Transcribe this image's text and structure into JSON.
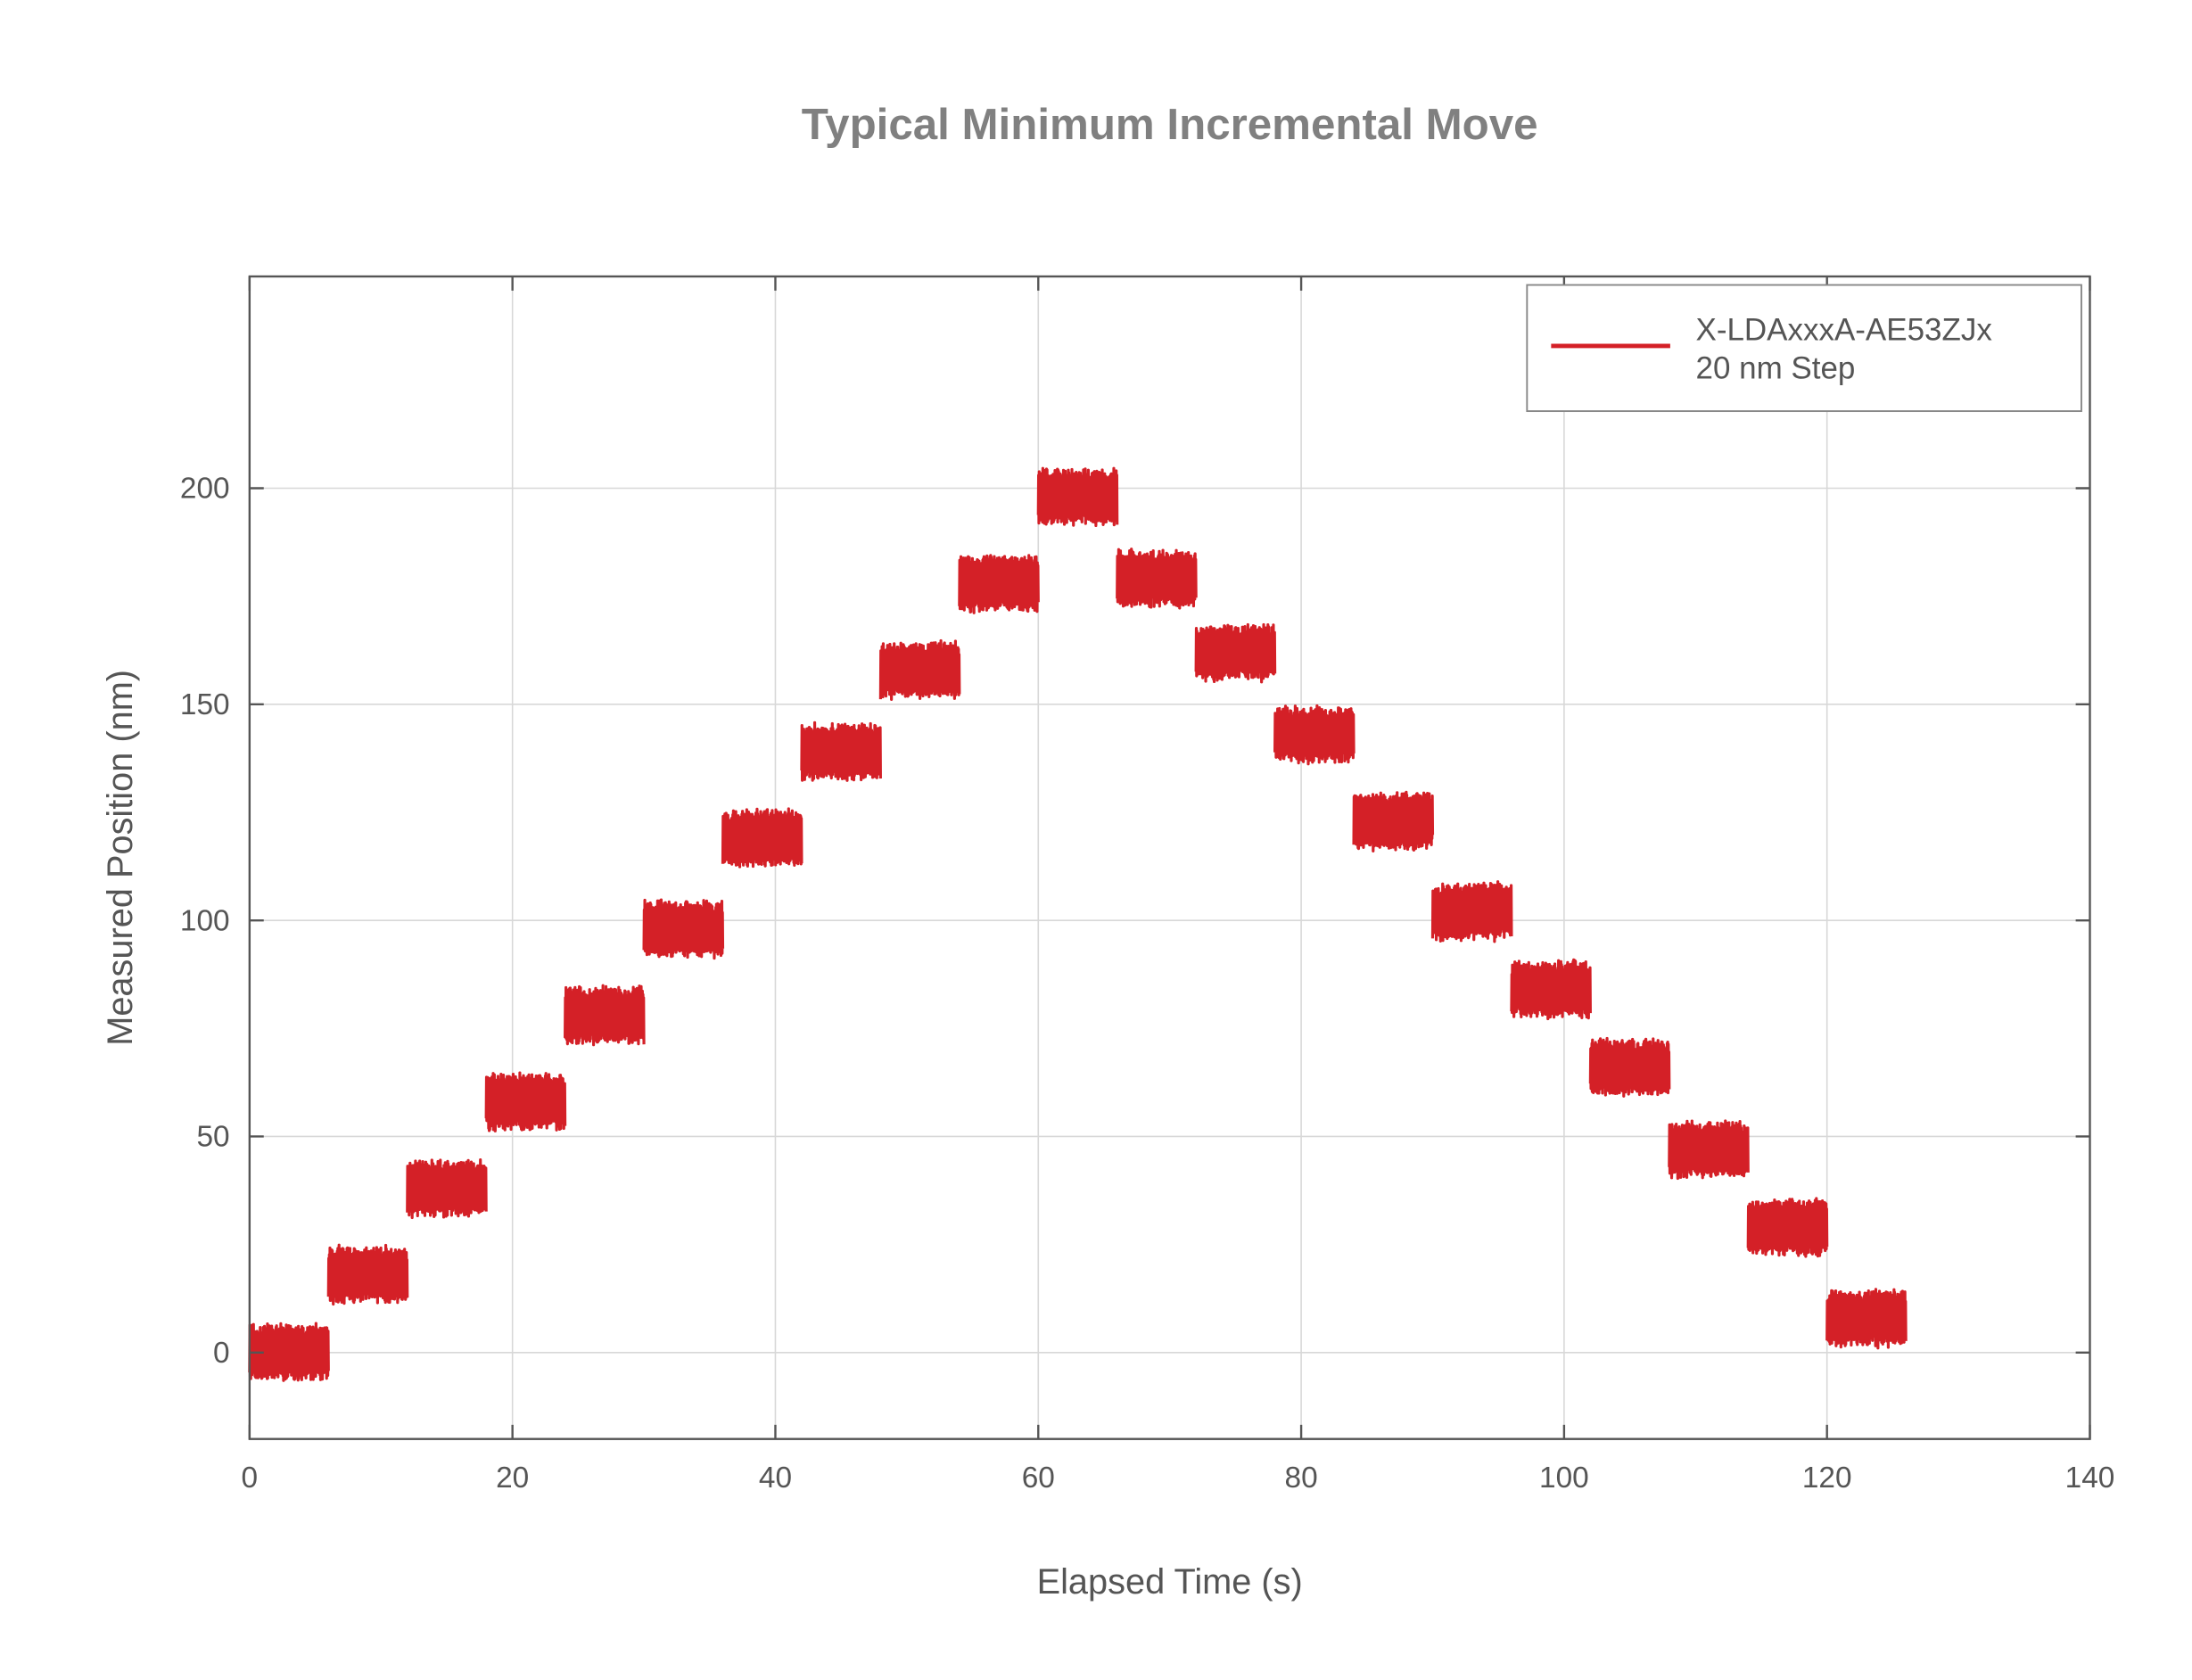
{
  "chart_data": {
    "type": "line",
    "title": "Typical Minimum Incremental Move",
    "xlabel": "Elapsed Time (s)",
    "ylabel": "Measured Position (nm)",
    "xlim": [
      0,
      140
    ],
    "ylim": [
      -20,
      249
    ],
    "xticks": [
      0,
      20,
      40,
      60,
      80,
      100,
      120,
      140
    ],
    "yticks": [
      0,
      50,
      100,
      150,
      200
    ],
    "grid": true,
    "legend_placement": "top-right",
    "series": [
      {
        "name": "X-LDAxxxA-AE53ZJx",
        "name_line2": "20 nm Step",
        "color": "#d42027",
        "noise_amplitude_nm": 7,
        "steps": [
          {
            "t_start": 0,
            "t_end": 6,
            "level": 0
          },
          {
            "t_start": 6,
            "t_end": 12,
            "level": 18
          },
          {
            "t_start": 12,
            "t_end": 18,
            "level": 38
          },
          {
            "t_start": 18,
            "t_end": 24,
            "level": 58
          },
          {
            "t_start": 24,
            "t_end": 30,
            "level": 78
          },
          {
            "t_start": 30,
            "t_end": 36,
            "level": 98
          },
          {
            "t_start": 36,
            "t_end": 42,
            "level": 119
          },
          {
            "t_start": 42,
            "t_end": 48,
            "level": 139
          },
          {
            "t_start": 48,
            "t_end": 54,
            "level": 158
          },
          {
            "t_start": 54,
            "t_end": 60,
            "level": 178
          },
          {
            "t_start": 60,
            "t_end": 66,
            "level": 198
          },
          {
            "t_start": 66,
            "t_end": 72,
            "level": 179
          },
          {
            "t_start": 72,
            "t_end": 78,
            "level": 162
          },
          {
            "t_start": 78,
            "t_end": 84,
            "level": 143
          },
          {
            "t_start": 84,
            "t_end": 90,
            "level": 123
          },
          {
            "t_start": 90,
            "t_end": 96,
            "level": 102
          },
          {
            "t_start": 96,
            "t_end": 102,
            "level": 84
          },
          {
            "t_start": 102,
            "t_end": 108,
            "level": 66
          },
          {
            "t_start": 108,
            "t_end": 114,
            "level": 47
          },
          {
            "t_start": 114,
            "t_end": 120,
            "level": 29
          },
          {
            "t_start": 120,
            "t_end": 126,
            "level": 8
          }
        ]
      }
    ]
  }
}
